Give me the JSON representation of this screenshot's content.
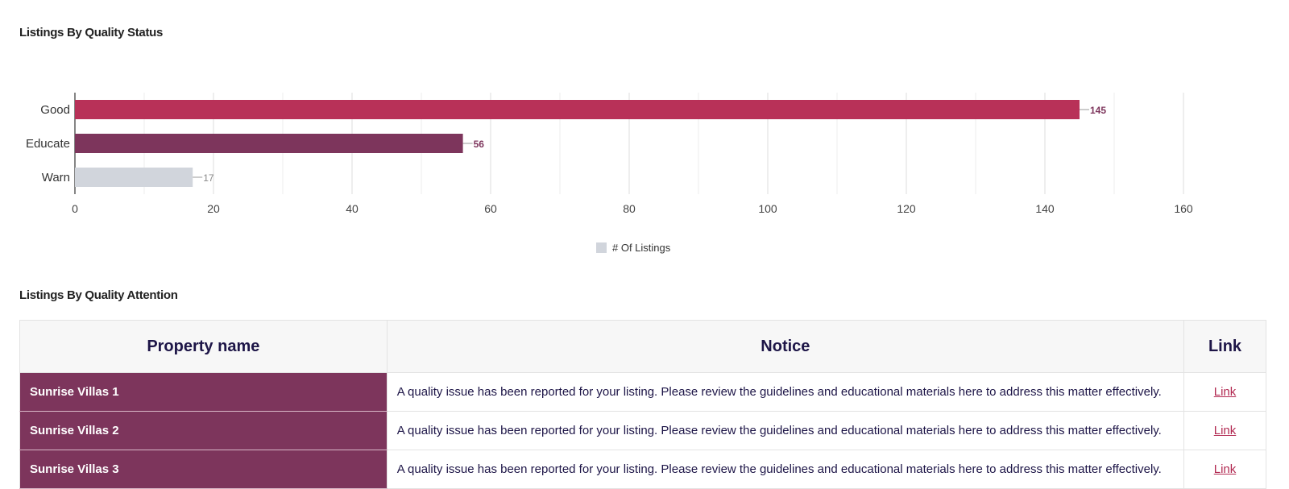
{
  "chart_section": {
    "title": "Listings By Quality Status"
  },
  "chart_data": {
    "type": "bar",
    "orientation": "horizontal",
    "categories": [
      "Good",
      "Educate",
      "Warn"
    ],
    "values": [
      145,
      56,
      17
    ],
    "bar_colors": [
      "#b83158",
      "#7d355c",
      "#d1d5dc"
    ],
    "xlim": [
      0,
      160
    ],
    "x_ticks": [
      0,
      20,
      40,
      60,
      80,
      100,
      120,
      140,
      160
    ],
    "grid": true,
    "legend": {
      "label": "# Of Listings",
      "color": "#d1d5dc",
      "placement": "bottom-center"
    }
  },
  "table_section": {
    "title": "Listings By Quality Attention",
    "headers": [
      "Property name",
      "Notice",
      "Link"
    ],
    "rows": [
      {
        "property": "Sunrise Villas 1",
        "notice": "A quality issue has been reported for your listing. Please review the guidelines and educational materials here to address this matter effectively.",
        "link": "Link"
      },
      {
        "property": "Sunrise Villas 2",
        "notice": "A quality issue has been reported for your listing. Please review the guidelines and educational materials here to address this matter effectively.",
        "link": "Link"
      },
      {
        "property": "Sunrise Villas 3",
        "notice": "A quality issue has been reported for your listing. Please review the guidelines and educational materials here to address this matter effectively.",
        "link": "Link"
      }
    ]
  },
  "colors": {
    "property_bg": "#7d355c",
    "header_text": "#1d1547",
    "link": "#b22a52"
  }
}
